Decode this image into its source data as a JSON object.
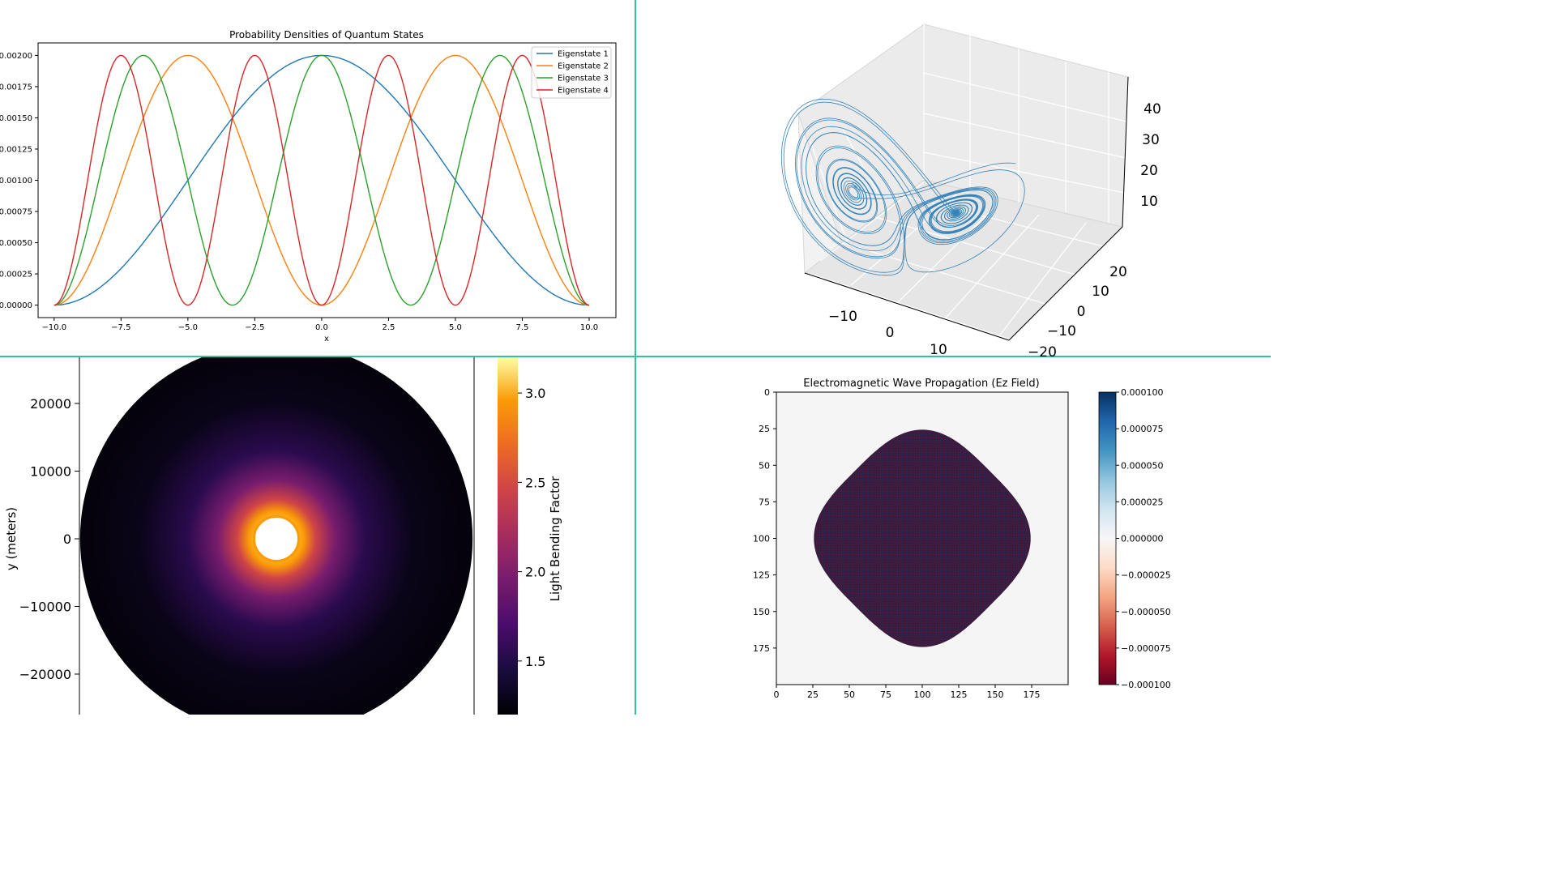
{
  "layout": {
    "divider_color": "#2ec4a0"
  },
  "chart_data": [
    {
      "id": "quantum",
      "type": "line",
      "title": "Probability Densities of Quantum States",
      "xlabel": "x",
      "ylabel": "",
      "xlim": [
        -10.6,
        11.0
      ],
      "ylim": [
        -0.0001,
        0.0021
      ],
      "xticks": [
        -10.0,
        -7.5,
        -5.0,
        -2.5,
        0.0,
        2.5,
        5.0,
        7.5,
        10.0
      ],
      "xtick_labels": [
        "−10.0",
        "−7.5",
        "−5.0",
        "−2.5",
        "0.0",
        "2.5",
        "5.0",
        "7.5",
        "10.0"
      ],
      "yticks": [
        0,
        0.00025,
        0.0005,
        0.00075,
        0.001,
        0.00125,
        0.0015,
        0.00175,
        0.002
      ],
      "ytick_labels": [
        "0.00000",
        "0.00025",
        "0.00050",
        "0.00075",
        "0.00100",
        "0.00125",
        "0.00150",
        "0.00175",
        "0.00200"
      ],
      "legend_position": "top-right",
      "amplitude": 0.002,
      "domain": [
        -10,
        10
      ],
      "series": [
        {
          "name": "Eigenstate 1",
          "n": 1,
          "color": "#1f77b4"
        },
        {
          "name": "Eigenstate 2",
          "n": 2,
          "color": "#ff7f0e"
        },
        {
          "name": "Eigenstate 3",
          "n": 3,
          "color": "#2ca02c"
        },
        {
          "name": "Eigenstate 4",
          "n": 4,
          "color": "#d62728"
        }
      ]
    },
    {
      "id": "lorenz",
      "type": "line",
      "title": "",
      "dimension": "3d",
      "color": "#1f77b4",
      "system": {
        "sigma": 10,
        "rho": 28,
        "beta": 2.6667
      },
      "x_ticks": [
        -10,
        0,
        10
      ],
      "x_tick_labels": [
        "−10",
        "0",
        "10"
      ],
      "y_ticks": [
        -20,
        -10,
        0,
        10,
        20
      ],
      "y_tick_labels": [
        "−20",
        "−10",
        "0",
        "10",
        "20"
      ],
      "z_ticks": [
        10,
        20,
        30,
        40
      ],
      "z_tick_labels": [
        "10",
        "20",
        "30",
        "40"
      ]
    },
    {
      "id": "lensing",
      "type": "heatmap",
      "title": "",
      "ylabel": "y (meters)",
      "colorbar_label": "Light Bending Factor",
      "colormap": "inferno",
      "colorbar_range": [
        1.2,
        3.2
      ],
      "colorbar_ticks": [
        1.5,
        2.0,
        2.5,
        3.0
      ],
      "colorbar_tick_labels": [
        "1.5",
        "2.0",
        "2.5",
        "3.0"
      ],
      "yticks": [
        20000,
        10000,
        0,
        -10000,
        -20000
      ],
      "ytick_labels": [
        "20000",
        "10000",
        "0",
        "−10000",
        "−20000"
      ],
      "disk_radius": 29000,
      "hole_radius": 3300,
      "ylim": [
        -26000,
        26000
      ]
    },
    {
      "id": "em_wave",
      "type": "heatmap",
      "title": "Electromagnetic Wave Propagation (Ez Field)",
      "colormap": "RdBu",
      "colorbar_range": [
        -0.0001,
        0.0001
      ],
      "colorbar_ticks": [
        0.0001,
        7.5e-05,
        5e-05,
        2.5e-05,
        0,
        -2.5e-05,
        -5e-05,
        -7.5e-05,
        -0.0001
      ],
      "colorbar_tick_labels": [
        "0.000100",
        "0.000075",
        "0.000050",
        "0.000025",
        "0.000000",
        "−0.000025",
        "−0.000050",
        "−0.000075",
        "−0.000100"
      ],
      "xticks": [
        0,
        25,
        50,
        75,
        100,
        125,
        150,
        175
      ],
      "yticks": [
        0,
        25,
        50,
        75,
        100,
        125,
        150,
        175
      ],
      "grid_size": 200,
      "center": [
        100,
        100
      ],
      "half_width": 65,
      "squareness": 3.2,
      "background_color": "#f5f5f5",
      "fill_color": "#3b1c3e"
    }
  ]
}
